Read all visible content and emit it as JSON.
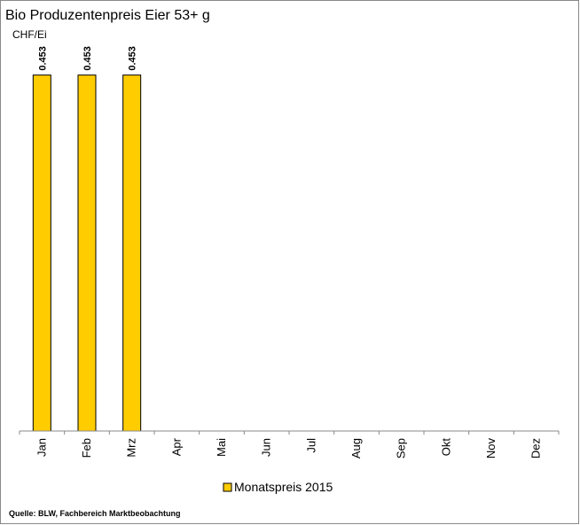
{
  "chart_data": {
    "type": "bar",
    "title": "Bio Produzentenpreis Eier 53+ g",
    "y_label": "CHF/Ei",
    "categories": [
      "Jan",
      "Feb",
      "Mrz",
      "Apr",
      "Mai",
      "Jun",
      "Jul",
      "Aug",
      "Sep",
      "Okt",
      "Nov",
      "Dez"
    ],
    "series": [
      {
        "name": "Monatspreis 2015",
        "color": "#ffcc00",
        "values": [
          0.453,
          0.453,
          0.453,
          null,
          null,
          null,
          null,
          null,
          null,
          null,
          null,
          null
        ]
      }
    ],
    "ylim": [
      0,
      0.5
    ],
    "source": "Quelle: BLW, Fachbereich Marktbeobachtung"
  }
}
